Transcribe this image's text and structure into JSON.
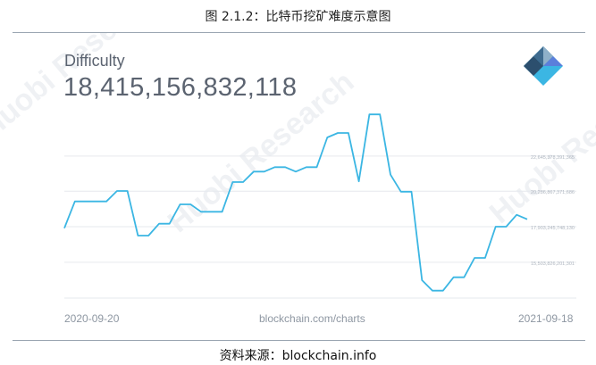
{
  "figure_caption": "图 2.1.2：比特币挖矿难度示意图",
  "source_caption": "资料来源：blockchain.info",
  "metric": {
    "label": "Difficulty",
    "value": "18,415,156,832,118"
  },
  "watermark": "Huobi Research",
  "colors": {
    "line": "#3bb6e3",
    "text": "#5b6370",
    "grid": "#e6e9ee",
    "rule": "#9aa6b2"
  },
  "chart_data": {
    "type": "line",
    "title": "",
    "xlabel": "",
    "ylabel": "",
    "x_start_label": "2020-09-20",
    "x_end_label": "2021-09-18",
    "source_label": "blockchain.com/charts",
    "y_ticks": [
      "22,645,378,391,365",
      "20,286,867,371,686",
      "17,903,245,748,130",
      "15,503,826,201,301"
    ],
    "ylim": [
      13100000000000,
      25460000000000
    ],
    "y_unit": "hashes",
    "values": [
      17800000000000,
      19600000000000,
      19600000000000,
      19600000000000,
      19600000000000,
      20300000000000,
      20300000000000,
      17300000000000,
      17300000000000,
      18100000000000,
      18100000000000,
      19400000000000,
      19400000000000,
      18900000000000,
      18900000000000,
      18900000000000,
      20900000000000,
      20900000000000,
      21600000000000,
      21600000000000,
      21900000000000,
      21900000000000,
      21600000000000,
      21900000000000,
      21900000000000,
      23900000000000,
      24200000000000,
      24200000000000,
      20950000000000,
      25450000000000,
      25450000000000,
      21400000000000,
      20250000000000,
      20250000000000,
      14300000000000,
      13600000000000,
      13600000000000,
      14500000000000,
      14500000000000,
      15800000000000,
      15800000000000,
      17900000000000,
      17900000000000,
      18700000000000,
      18400000000000
    ],
    "grid": true,
    "legend": "none"
  }
}
